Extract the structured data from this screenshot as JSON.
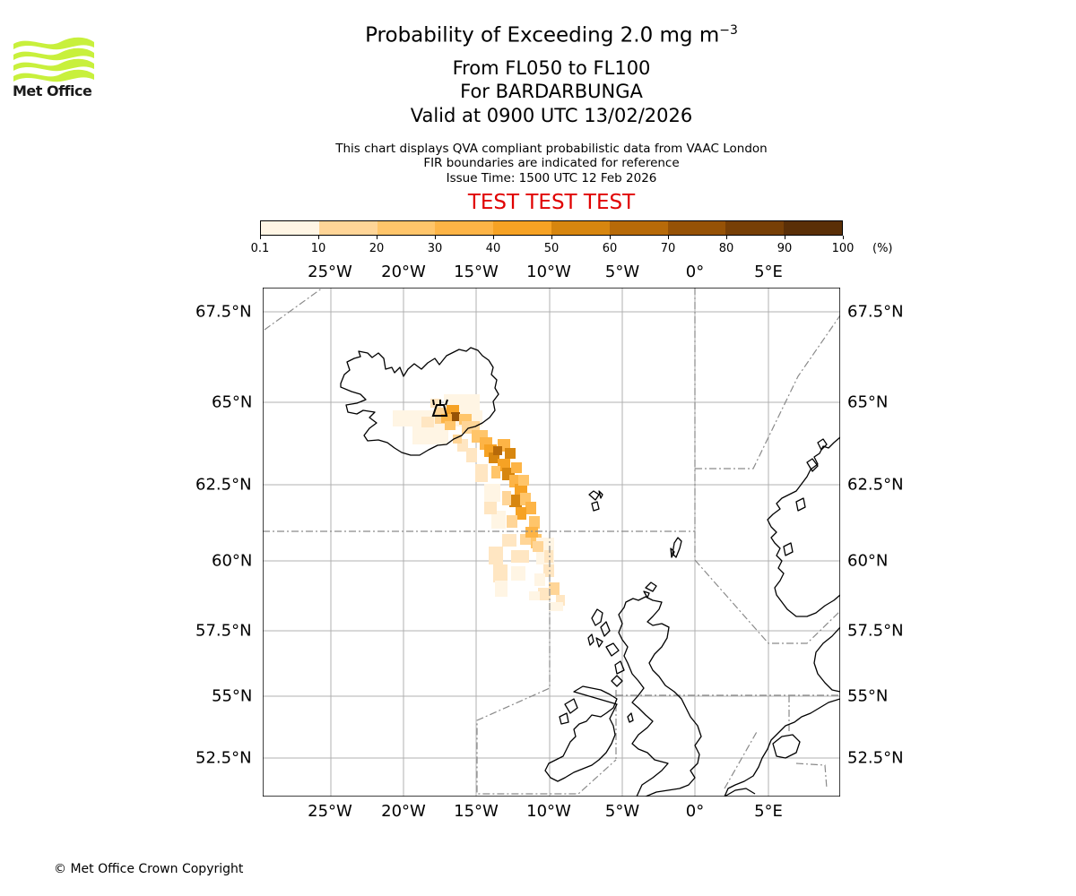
{
  "header": {
    "title_prefix": "Probability of Exceeding 2.0 mg m",
    "title_exponent": "−3",
    "levels": "From FL050 to FL100",
    "volcano": "For BARDARBUNGA",
    "valid": "Valid at 0900 UTC 13/02/2026",
    "note_1": "This chart displays QVA compliant probabilistic data from VAAC London",
    "note_2": "FIR boundaries are indicated for reference",
    "issue_time": "Issue Time: 1500 UTC 12 Feb 2026",
    "test_banner": "TEST TEST TEST"
  },
  "logo": {
    "text": "Met Office",
    "color": "#c8f03c"
  },
  "colorbar": {
    "ticks": [
      "0.1",
      "10",
      "20",
      "30",
      "40",
      "50",
      "60",
      "70",
      "80",
      "90",
      "100"
    ],
    "units": "(%)",
    "colors": [
      "#fff5e4",
      "#ffe6c2",
      "#ffd597",
      "#ffc56a",
      "#fdb446",
      "#f6a224",
      "#d7860f",
      "#b76a09",
      "#965206",
      "#773f06",
      "#5a2f07"
    ]
  },
  "map": {
    "lon_ticks": [
      "25°W",
      "20°W",
      "15°W",
      "10°W",
      "5°W",
      "0°",
      "5°E"
    ],
    "lat_ticks": [
      "67.5°N",
      "65°N",
      "62.5°N",
      "60°N",
      "57.5°N",
      "55°N",
      "52.5°N"
    ],
    "volcano_marker": "volcano-symbol"
  },
  "footer": {
    "copyright": "© Met Office Crown Copyright"
  }
}
